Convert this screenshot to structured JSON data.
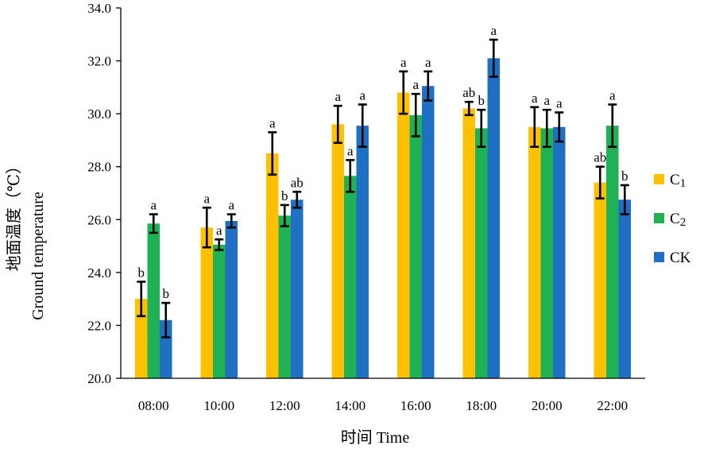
{
  "chart_data": {
    "type": "bar",
    "categories": [
      "08:00",
      "10:00",
      "12:00",
      "14:00",
      "16:00",
      "18:00",
      "20:00",
      "22:00"
    ],
    "series": [
      {
        "name": "C1",
        "name_base": "C",
        "name_sub": "1",
        "color": "#FFC000",
        "values": [
          23.0,
          25.7,
          28.5,
          29.6,
          30.8,
          30.2,
          29.5,
          27.4
        ],
        "errors": [
          0.65,
          0.75,
          0.8,
          0.7,
          0.8,
          0.25,
          0.75,
          0.6
        ],
        "labels": [
          "b",
          "a",
          "a",
          "a",
          "a",
          "ab",
          "a",
          "ab"
        ]
      },
      {
        "name": "C2",
        "name_base": "C",
        "name_sub": "2",
        "color": "#1FB254",
        "values": [
          25.85,
          25.05,
          26.15,
          27.65,
          29.95,
          29.45,
          29.45,
          29.55
        ],
        "errors": [
          0.35,
          0.2,
          0.4,
          0.6,
          0.8,
          0.7,
          0.7,
          0.8
        ],
        "labels": [
          "a",
          "a",
          "b",
          "a",
          "a",
          "b",
          "a",
          "a"
        ]
      },
      {
        "name": "CK",
        "name_base": "CK",
        "name_sub": "",
        "color": "#1F6FC3",
        "values": [
          22.2,
          25.95,
          26.75,
          29.55,
          31.05,
          32.1,
          29.5,
          26.75
        ],
        "errors": [
          0.65,
          0.25,
          0.3,
          0.8,
          0.55,
          0.7,
          0.55,
          0.55
        ],
        "labels": [
          "b",
          "a",
          "ab",
          "a",
          "a",
          "a",
          "a",
          "b"
        ]
      }
    ],
    "ylim": [
      20.0,
      34.0
    ],
    "yticks": [
      "20.0",
      "22.0",
      "24.0",
      "26.0",
      "28.0",
      "30.0",
      "32.0",
      "34.0"
    ],
    "xlabel": "时间 Time",
    "ylabel_cn": "地面温度（℃）",
    "ylabel_en": "Ground temperature",
    "legend_position": "right",
    "grid": false
  }
}
